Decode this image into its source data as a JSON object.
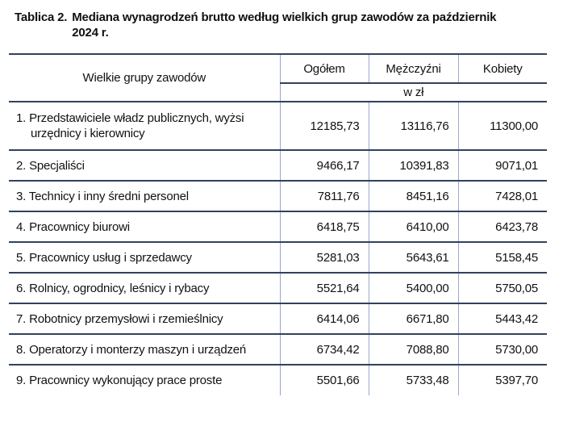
{
  "colors": {
    "border-dark": "#31415f",
    "border-light": "#9aa6cc",
    "text": "#111111",
    "background": "#ffffff"
  },
  "title": {
    "prefix": "Tablica 2.",
    "line1": "Mediana wynagrodzeń brutto według wielkich grup zawodów za październik",
    "line2": "2024 r."
  },
  "table": {
    "header": {
      "groups": "Wielkie grupy zawodów",
      "total": "Ogółem",
      "men": "Mężczyźni",
      "women": "Kobiety",
      "unit": "w zł"
    },
    "rows": [
      {
        "label": "1. Przedstawiciele władz publicznych, wyżsi urzędnicy i kierownicy",
        "total": "12185,73",
        "men": "13116,76",
        "women": "11300,00"
      },
      {
        "label": "2. Specjaliści",
        "total": "9466,17",
        "men": "10391,83",
        "women": "9071,01"
      },
      {
        "label": "3. Technicy i inny średni personel",
        "total": "7811,76",
        "men": "8451,16",
        "women": "7428,01"
      },
      {
        "label": "4. Pracownicy biurowi",
        "total": "6418,75",
        "men": "6410,00",
        "women": "6423,78"
      },
      {
        "label": "5. Pracownicy usług i sprzedawcy",
        "total": "5281,03",
        "men": "5643,61",
        "women": "5158,45"
      },
      {
        "label": "6. Rolnicy, ogrodnicy, leśnicy i rybacy",
        "total": "5521,64",
        "men": "5400,00",
        "women": "5750,05"
      },
      {
        "label": "7. Robotnicy przemysłowi i rzemieślnicy",
        "total": "6414,06",
        "men": "6671,80",
        "women": "5443,42"
      },
      {
        "label": "8. Operatorzy i monterzy maszyn i urządzeń",
        "total": "6734,42",
        "men": "7088,80",
        "women": "5730,00"
      },
      {
        "label": "9. Pracownicy wykonujący prace proste",
        "total": "5501,66",
        "men": "5733,48",
        "women": "5397,70"
      }
    ]
  }
}
